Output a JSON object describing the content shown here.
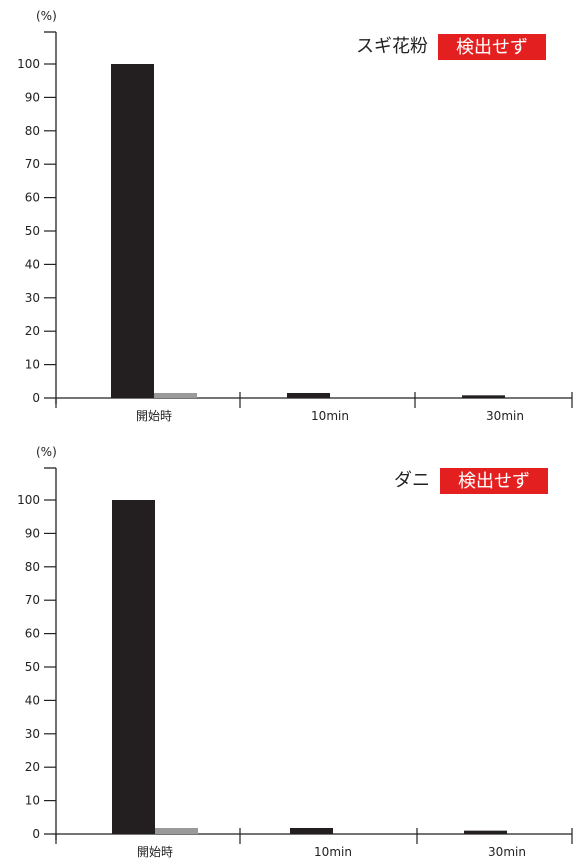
{
  "chart_data": [
    {
      "type": "bar",
      "title": "スギ花粉",
      "badge": "検出せず",
      "unit_label": "(%)",
      "categories": [
        "開始時",
        "10min",
        "30min"
      ],
      "series": [
        {
          "values": [
            100,
            1.5,
            0.8
          ]
        },
        {
          "values": [
            1.5,
            0,
            0
          ]
        }
      ],
      "yticks": [
        0,
        10,
        20,
        30,
        40,
        50,
        60,
        70,
        80,
        90,
        100
      ],
      "ylim": [
        0,
        110
      ]
    },
    {
      "type": "bar",
      "title": "ダニ",
      "badge": "検出せず",
      "unit_label": "(%)",
      "categories": [
        "開始時",
        "10min",
        "30min"
      ],
      "series": [
        {
          "values": [
            100,
            1.8,
            1.0
          ]
        },
        {
          "values": [
            1.8,
            0,
            0
          ]
        }
      ],
      "yticks": [
        0,
        10,
        20,
        30,
        40,
        50,
        60,
        70,
        80,
        90,
        100
      ],
      "ylim": [
        0,
        110
      ]
    }
  ],
  "colors": {
    "primary_bar": "#231f20",
    "secondary_bar": "#9a9a9a",
    "badge_bg": "#e41f1f",
    "axis": "#222222"
  }
}
